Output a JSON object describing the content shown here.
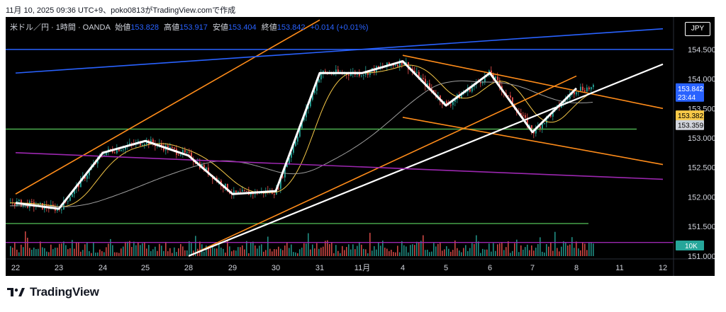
{
  "header": {
    "caption": "11月 10, 2025 09:36 UTC+9、poko0813がTradingView.comで作成"
  },
  "legend": {
    "symbol": "米ドル／円 · 1時間 · OANDA",
    "open_label": "始値",
    "open": "153.828",
    "high_label": "高値",
    "high": "153.917",
    "low_label": "安値",
    "low": "153.404",
    "close_label": "終値",
    "close": "153.842",
    "change": "+0.014 (+0.01%)"
  },
  "currency_button": "JPY",
  "price_axis": {
    "ticks": [
      "154.500",
      "154.000",
      "153.500",
      "153.000",
      "152.500",
      "152.000",
      "151.500",
      "151.000"
    ],
    "last_price": {
      "value": "153.842",
      "countdown": "23:44",
      "color": "#2962ff"
    },
    "ma_fast_tag": {
      "value": "153.382",
      "color": "#f7c948"
    },
    "ma_slow_tag": {
      "value": "153.359",
      "color": "#d1d4dc"
    },
    "volume_tag": {
      "value": "10K",
      "color": "#26a69a"
    }
  },
  "time_axis": {
    "ticks": [
      "22",
      "23",
      "24",
      "25",
      "28",
      "29",
      "30",
      "31",
      "11月",
      "4",
      "5",
      "6",
      "7",
      "8",
      "11",
      "12"
    ]
  },
  "brand": {
    "name": "TradingView"
  },
  "colors": {
    "background": "#000000",
    "bull": "#26a69a",
    "bear": "#ef5350",
    "orange_line": "#ff8c1a",
    "blue_line": "#2962ff",
    "green_line": "#4caf50",
    "purple_line": "#9c27b0",
    "white_line": "#ffffff"
  },
  "chart_data": {
    "type": "candlestick",
    "symbol": "米ドル／円",
    "interval": "1時間",
    "exchange": "OANDA",
    "ylim": [
      150.95,
      155.05
    ],
    "x_categories": [
      "22",
      "23",
      "24",
      "25",
      "28",
      "29",
      "30",
      "31",
      "11月",
      "4",
      "5",
      "6",
      "7",
      "8",
      "11",
      "12"
    ],
    "close_path": [
      {
        "x": "22",
        "y": 151.9
      },
      {
        "x": "23",
        "y": 151.8
      },
      {
        "x": "24",
        "y": 152.75
      },
      {
        "x": "25",
        "y": 152.95
      },
      {
        "x": "28",
        "y": 152.7
      },
      {
        "x": "29",
        "y": 152.05
      },
      {
        "x": "30",
        "y": 152.1
      },
      {
        "x": "31",
        "y": 154.1
      },
      {
        "x": "11月",
        "y": 154.1
      },
      {
        "x": "4",
        "y": 154.3
      },
      {
        "x": "5",
        "y": 153.55
      },
      {
        "x": "6",
        "y": 154.1
      },
      {
        "x": "7",
        "y": 153.1
      },
      {
        "x": "8",
        "y": 153.842
      }
    ],
    "horizontal_levels": [
      {
        "price": 154.5,
        "color": "blue"
      },
      {
        "price": 153.15,
        "color": "green"
      },
      {
        "price": 151.55,
        "color": "green"
      },
      {
        "price": 151.23,
        "color": "purple"
      }
    ],
    "trendlines": [
      {
        "color": "orange",
        "from": {
          "x": "22",
          "y": 152.05
        },
        "to": {
          "x": "31",
          "y": 155.0
        }
      },
      {
        "color": "orange",
        "from": {
          "x": "28",
          "y": 151.0
        },
        "to": {
          "x": "8",
          "y": 154.05
        }
      },
      {
        "color": "orange",
        "from": {
          "x": "4",
          "y": 154.4
        },
        "to": {
          "x": "12",
          "y": 153.5
        }
      },
      {
        "color": "orange",
        "from": {
          "x": "4",
          "y": 153.35
        },
        "to": {
          "x": "12",
          "y": 152.55
        }
      },
      {
        "color": "white",
        "from": {
          "x": "28",
          "y": 151.0
        },
        "to": {
          "x": "12",
          "y": 154.25
        }
      },
      {
        "color": "blue",
        "from": {
          "x": "22",
          "y": 154.1
        },
        "to": {
          "x": "12",
          "y": 154.85
        }
      },
      {
        "color": "purple",
        "from": {
          "x": "22",
          "y": 152.75
        },
        "to": {
          "x": "12",
          "y": 152.3
        }
      }
    ],
    "moving_averages": [
      {
        "value": 153.382,
        "color": "yellow"
      },
      {
        "value": 153.359,
        "color": "gray"
      }
    ],
    "volume_axis_label": "10K"
  }
}
